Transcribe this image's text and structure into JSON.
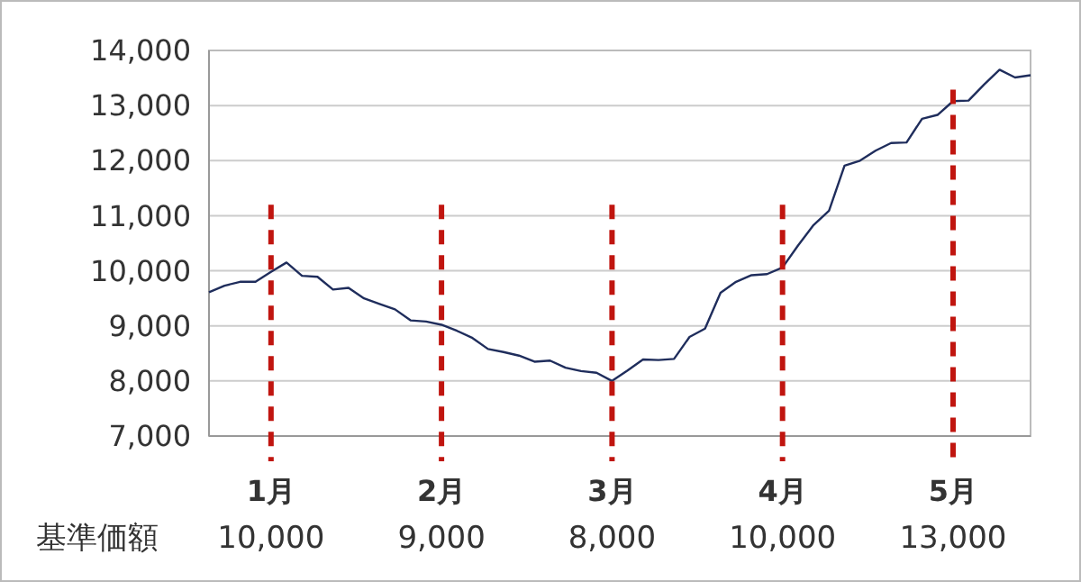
{
  "chart_data": {
    "type": "line",
    "ylim": [
      7000,
      14000
    ],
    "yticks": [
      {
        "value": 7000,
        "label": "7,000"
      },
      {
        "value": 8000,
        "label": "8,000"
      },
      {
        "value": 9000,
        "label": "9,000"
      },
      {
        "value": 10000,
        "label": "10,000"
      },
      {
        "value": 11000,
        "label": "11,000"
      },
      {
        "value": 12000,
        "label": "12,000"
      },
      {
        "value": 13000,
        "label": "13,000"
      },
      {
        "value": 14000,
        "label": "14,000"
      }
    ],
    "categories": [
      null,
      null,
      null,
      null,
      "1月",
      null,
      null,
      null,
      null,
      null,
      null,
      null,
      null,
      null,
      null,
      "2月",
      null,
      null,
      null,
      null,
      null,
      null,
      null,
      null,
      null,
      null,
      "3月",
      null,
      null,
      null,
      null,
      null,
      null,
      null,
      null,
      null,
      null,
      "4月",
      null,
      null,
      null,
      null,
      null,
      null,
      null,
      null,
      null,
      null,
      "5月",
      null,
      null,
      null,
      null,
      null
    ],
    "grid": "y",
    "marker": "none",
    "line_style": "solid",
    "series": [
      {
        "color": "#1f2d5c",
        "values": [
          9610,
          9730,
          9800,
          9800,
          9980,
          10150,
          9910,
          9890,
          9660,
          9690,
          9500,
          9400,
          9300,
          9100,
          9080,
          9020,
          8910,
          8780,
          8580,
          8525,
          8460,
          8350,
          8370,
          8240,
          8180,
          8150,
          8000,
          8190,
          8390,
          8380,
          8400,
          8800,
          8950,
          9600,
          9800,
          9920,
          9940,
          10060,
          10460,
          10830,
          11090,
          11910,
          12000,
          12180,
          12320,
          12330,
          12760,
          12830,
          13080,
          13090,
          13380,
          13650,
          13510,
          13550
        ]
      }
    ],
    "ref_lines": [
      {
        "axis": "x",
        "value": "1月",
        "label": "10,000",
        "color": "#c0150f",
        "line_style": "dashed"
      },
      {
        "axis": "x",
        "value": "2月",
        "label": "9,000",
        "color": "#c0150f",
        "line_style": "dashed"
      },
      {
        "axis": "x",
        "value": "3月",
        "label": "8,000",
        "color": "#c0150f",
        "line_style": "dashed"
      },
      {
        "axis": "x",
        "value": "4月",
        "label": "10,000",
        "color": "#c0150f",
        "line_style": "dashed"
      },
      {
        "axis": "x",
        "value": "5月",
        "label": "13,000",
        "color": "#c0150f",
        "line_style": "dashed"
      }
    ],
    "annotations": [
      "基準価額"
    ]
  }
}
